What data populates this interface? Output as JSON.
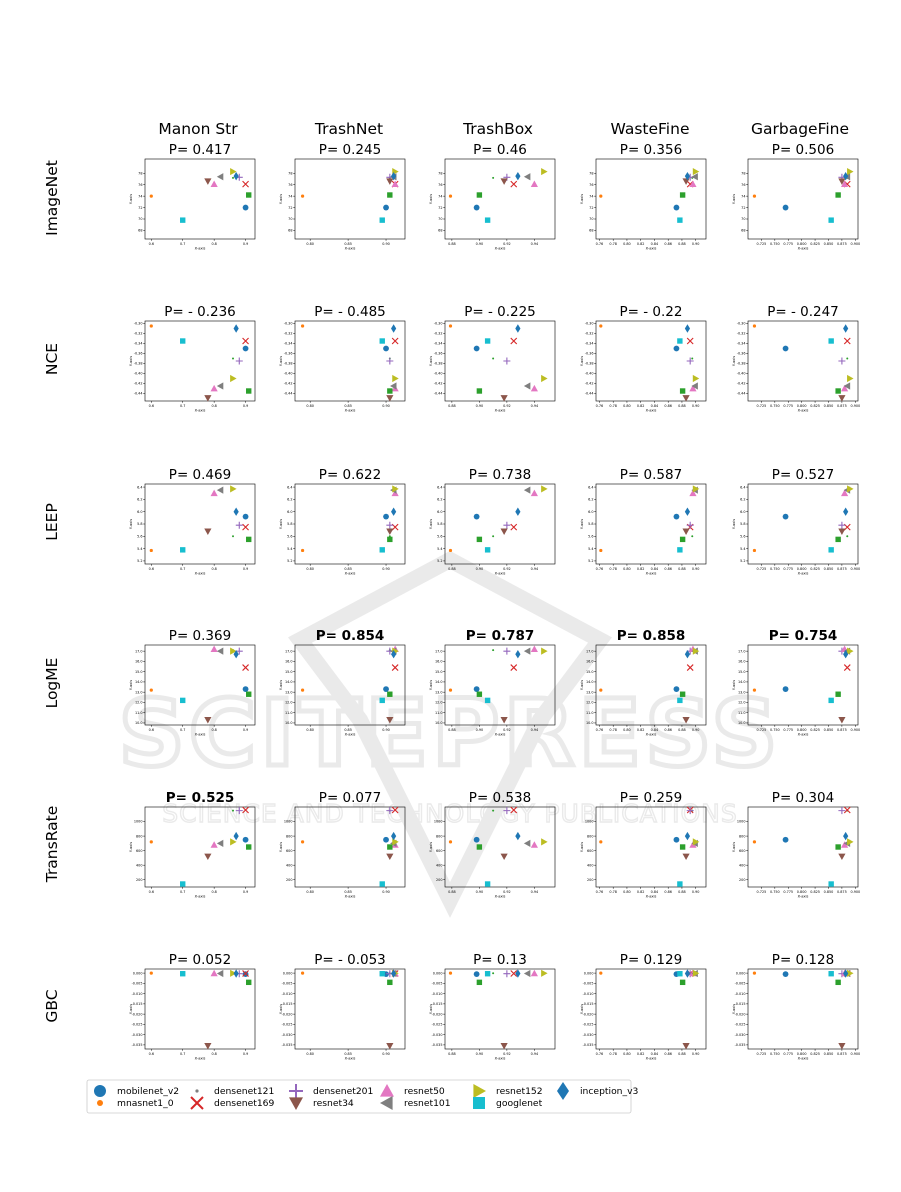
{
  "watermark": {
    "logo": "SCITEPRESS",
    "tagline": "SCIENCE AND TECHNOLOGY PUBLICATIONS",
    "color": "#d9d9d9"
  },
  "datasets": [
    "Manon Str",
    "TrashNet",
    "TrashBox",
    "WasteFine",
    "GarbageFine"
  ],
  "metrics": [
    "ImageNet",
    "NCE",
    "LEEP",
    "LogME",
    "TransRate",
    "GBC"
  ],
  "axis_label": {
    "x": "X-axis",
    "y": "Y-axis"
  },
  "p_values": [
    [
      "P= 0.417",
      "P= 0.245",
      "P= 0.46",
      "P= 0.356",
      "P= 0.506"
    ],
    [
      "P= - 0.236",
      "P= - 0.485",
      "P= - 0.225",
      "P= - 0.22",
      "P= - 0.247"
    ],
    [
      "P= 0.469",
      "P= 0.622",
      "P= 0.738",
      "P= 0.587",
      "P= 0.527"
    ],
    [
      "P= 0.369",
      "P= 0.854",
      "P= 0.787",
      "P= 0.858",
      "P= 0.754"
    ],
    [
      "P= 0.525",
      "P= 0.077",
      "P= 0.538",
      "P= 0.259",
      "P= 0.304"
    ],
    [
      "P= 0.052",
      "P= - 0.053",
      "P= 0.13",
      "P= 0.129",
      "P= 0.128"
    ]
  ],
  "p_bold": [
    [
      false,
      false,
      false,
      false,
      false
    ],
    [
      false,
      false,
      false,
      false,
      false
    ],
    [
      false,
      false,
      false,
      false,
      false
    ],
    [
      false,
      true,
      true,
      true,
      true
    ],
    [
      true,
      false,
      false,
      false,
      false
    ],
    [
      false,
      false,
      false,
      false,
      false
    ]
  ],
  "legend": [
    {
      "name": "mobilenet_v2",
      "marker": "circle",
      "color": "#1f77b4"
    },
    {
      "name": "mnasnet1_0",
      "marker": "smalldot",
      "color": "#ff7f0e"
    },
    {
      "name": "densenet121",
      "marker": "dot",
      "color": "#2ca02c"
    },
    {
      "name": "densenet169",
      "marker": "x",
      "color": "#d62728"
    },
    {
      "name": "densenet201",
      "marker": "plus",
      "color": "#9467bd"
    },
    {
      "name": "resnet34",
      "marker": "tri_down",
      "color": "#8c564b"
    },
    {
      "name": "resnet50",
      "marker": "tri_up",
      "color": "#e377c2"
    },
    {
      "name": "resnet101",
      "marker": "tri_left",
      "color": "#7f7f7f"
    },
    {
      "name": "resnet152",
      "marker": "tri_right",
      "color": "#bcbd22"
    },
    {
      "name": "googlenet",
      "marker": "square",
      "color": "#17becf"
    },
    {
      "name": "inception_v3",
      "marker": "diamond",
      "color": "#1f77b4"
    }
  ],
  "chart_data": {
    "type": "scatter",
    "note_models": [
      "mobilenet_v2",
      "mnasnet1_0",
      "densenet121",
      "densenet169",
      "densenet201",
      "resnet34",
      "resnet50",
      "resnet101",
      "resnet152",
      "googlenet",
      "inception_v3",
      "green_square"
    ],
    "x_axes": {
      "Manon Str": {
        "xlim": [
          0.58,
          0.93
        ],
        "ticks": [
          0.6,
          0.7,
          0.8,
          0.9
        ],
        "tick_labels": [
          "0.6",
          "0.7",
          "0.8",
          "0.9"
        ],
        "x": [
          0.9,
          0.6,
          0.86,
          0.9,
          0.88,
          0.78,
          0.8,
          0.82,
          0.86,
          0.7,
          0.87,
          0.91
        ]
      },
      "TrashNet": {
        "xlim": [
          0.78,
          0.925
        ],
        "ticks": [
          0.8,
          0.85,
          0.9
        ],
        "tick_labels": [
          "0.80",
          "0.85",
          "0.90"
        ],
        "x": [
          0.9,
          0.79,
          0.905,
          0.912,
          0.905,
          0.905,
          0.912,
          0.91,
          0.912,
          0.895,
          0.91,
          0.905
        ]
      },
      "TrashBox": {
        "xlim": [
          0.875,
          0.955
        ],
        "ticks": [
          0.88,
          0.9,
          0.92,
          0.94
        ],
        "tick_labels": [
          "0.88",
          "0.90",
          "0.92",
          "0.94"
        ],
        "x": [
          0.898,
          0.879,
          0.91,
          0.925,
          0.92,
          0.918,
          0.94,
          0.935,
          0.947,
          0.906,
          0.928,
          0.9
        ]
      },
      "WasteFine": {
        "xlim": [
          0.755,
          0.915
        ],
        "ticks": [
          0.76,
          0.78,
          0.8,
          0.82,
          0.84,
          0.86,
          0.88,
          0.9
        ],
        "tick_labels": [
          "0.76",
          "0.78",
          "0.80",
          "0.82",
          "0.84",
          "0.86",
          "0.88",
          "0.90"
        ],
        "x": [
          0.872,
          0.762,
          0.895,
          0.892,
          0.892,
          0.886,
          0.896,
          0.899,
          0.9,
          0.877,
          0.888,
          0.881
        ]
      },
      "GarbageFine": {
        "xlim": [
          0.7,
          0.905
        ],
        "ticks": [
          0.725,
          0.75,
          0.775,
          0.8,
          0.825,
          0.85,
          0.875,
          0.9
        ],
        "tick_labels": [
          "0.725",
          "0.750",
          "0.775",
          "0.800",
          "0.825",
          "0.850",
          "0.875",
          "0.900"
        ],
        "x": [
          0.77,
          0.712,
          0.885,
          0.885,
          0.875,
          0.875,
          0.88,
          0.885,
          0.89,
          0.855,
          0.882,
          0.868
        ]
      }
    },
    "rows": {
      "ImageNet": {
        "ylim": [
          66.5,
          80.5
        ],
        "yticks": [
          68,
          70,
          72,
          74,
          76,
          78
        ],
        "ytick_labels": [
          "68",
          "70",
          "72",
          "74",
          "76",
          "78"
        ],
        "y": [
          72,
          74,
          77.2,
          76.1,
          77.3,
          76.6,
          76.1,
          77.4,
          78.3,
          69.8,
          77.5,
          74.2
        ]
      },
      "NCE": {
        "ylim": [
          -0.455,
          -0.295
        ],
        "yticks": [
          -0.44,
          -0.42,
          -0.4,
          -0.38,
          -0.36,
          -0.34,
          -0.32,
          -0.3
        ],
        "ytick_labels": [
          "-0.44",
          "-0.42",
          "-0.40",
          "-0.38",
          "-0.36",
          "-0.34",
          "-0.32",
          "-0.30"
        ],
        "y": [
          -0.35,
          -0.305,
          -0.37,
          -0.335,
          -0.375,
          -0.45,
          -0.43,
          -0.425,
          -0.41,
          -0.335,
          -0.31,
          -0.435
        ]
      },
      "LEEP": {
        "ylim": [
          5.15,
          6.45
        ],
        "yticks": [
          5.2,
          5.4,
          5.6,
          5.8,
          6.0,
          6.2,
          6.4
        ],
        "ytick_labels": [
          "5.2",
          "5.4",
          "5.6",
          "5.8",
          "6.0",
          "6.2",
          "6.4"
        ],
        "y": [
          5.92,
          5.37,
          5.6,
          5.75,
          5.78,
          5.68,
          6.3,
          6.35,
          6.37,
          5.38,
          6.0,
          5.55
        ]
      },
      "LogME": {
        "ylim": [
          9.8,
          17.6
        ],
        "yticks": [
          10.0,
          11.0,
          12.0,
          13.0,
          14.0,
          15.0,
          16.0,
          17.0
        ],
        "ytick_labels": [
          "10.0",
          "11.0",
          "12.0",
          "13.0",
          "14.0",
          "15.0",
          "16.0",
          "17.0"
        ],
        "y": [
          13.3,
          13.2,
          17.1,
          15.4,
          17.0,
          10.3,
          17.2,
          17.0,
          17.0,
          12.2,
          16.7,
          12.8
        ]
      },
      "TransRate": {
        "ylim": [
          100,
          1200
        ],
        "yticks": [
          200,
          400,
          600,
          800,
          1000
        ],
        "ytick_labels": [
          "200",
          "400",
          "600",
          "800",
          "1000"
        ],
        "y": [
          750,
          720,
          1150,
          1160,
          1150,
          520,
          680,
          700,
          720,
          120,
          800,
          650
        ]
      },
      "GBC": {
        "ylim": [
          -0.037,
          0.002
        ],
        "yticks": [
          -0.035,
          -0.03,
          -0.025,
          -0.02,
          -0.015,
          -0.01,
          -0.005,
          0.0
        ],
        "ytick_labels": [
          "-0.035",
          "-0.030",
          "-0.025",
          "-0.020",
          "-0.015",
          "-0.010",
          "-0.005",
          "0.000"
        ],
        "y": [
          -0.0005,
          0.0,
          -0.0001,
          -0.0002,
          -0.0003,
          -0.0355,
          -0.0001,
          -0.0002,
          -0.0001,
          -0.0003,
          -0.0002,
          -0.0045
        ]
      }
    }
  }
}
